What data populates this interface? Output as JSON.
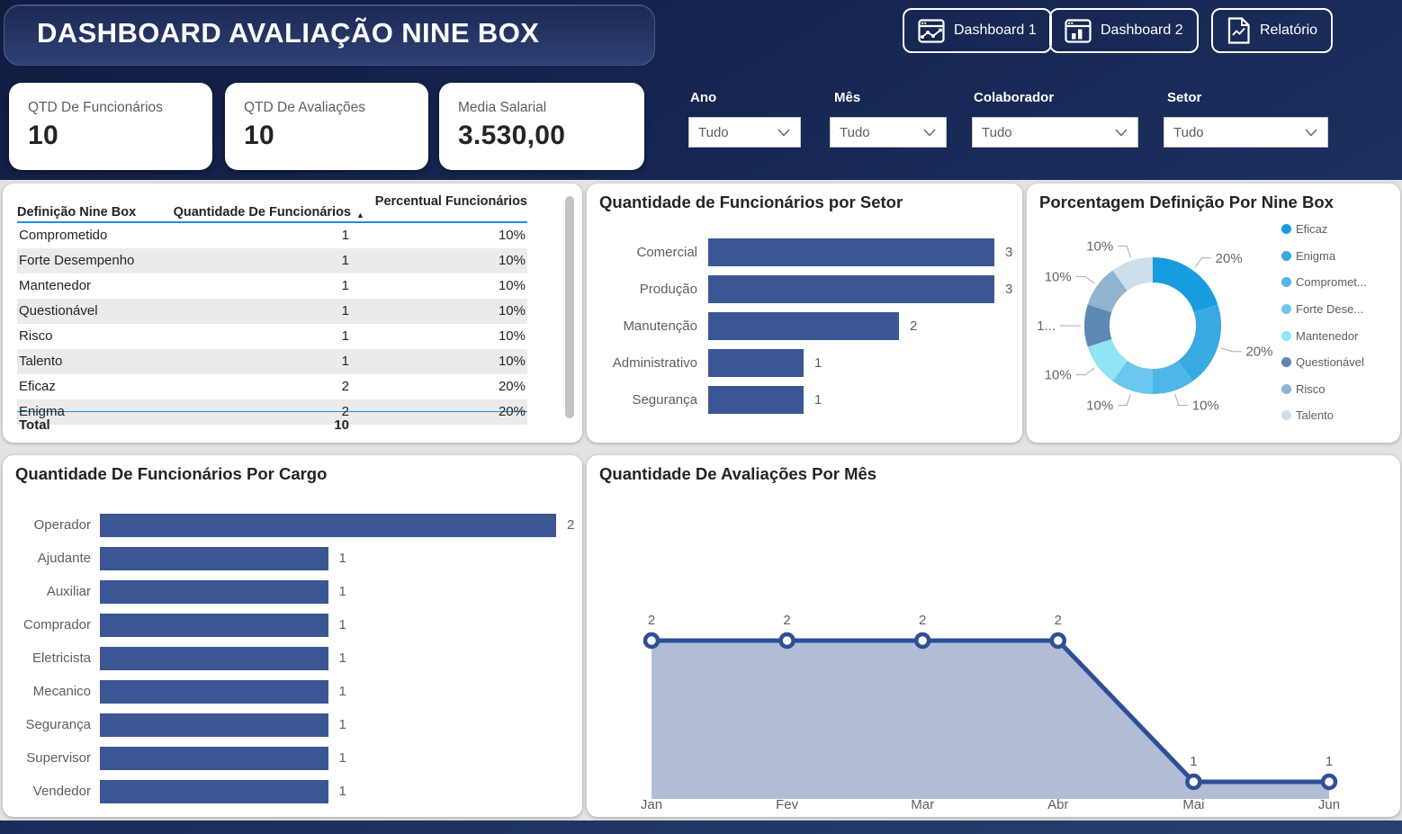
{
  "header": {
    "title": "DASHBOARD AVALIAÇÃO NINE BOX",
    "nav_buttons": [
      {
        "label": "Dashboard 1",
        "icon": "window-line-chart-icon"
      },
      {
        "label": "Dashboard 2",
        "icon": "window-bar-chart-icon"
      },
      {
        "label": "Relatório",
        "icon": "report-document-icon"
      }
    ]
  },
  "kpi_cards": [
    {
      "label": "QTD De Funcionários",
      "value": "10"
    },
    {
      "label": "QTD De Avaliações",
      "value": "10"
    },
    {
      "label": "Media Salarial",
      "value": "3.530,00"
    }
  ],
  "filters": [
    {
      "label": "Ano",
      "value": "Tudo"
    },
    {
      "label": "Mês",
      "value": "Tudo"
    },
    {
      "label": "Colaborador",
      "value": "Tudo"
    },
    {
      "label": "Setor",
      "value": "Tudo"
    }
  ],
  "nine_box_table": {
    "columns": [
      "Definição Nine Box",
      "Quantidade De Funcionários",
      "Percentual Funcionários"
    ],
    "sort_indicator": "▲",
    "rows": [
      [
        "Comprometido",
        "1",
        "10%"
      ],
      [
        "Forte Desempenho",
        "1",
        "10%"
      ],
      [
        "Mantenedor",
        "1",
        "10%"
      ],
      [
        "Questionável",
        "1",
        "10%"
      ],
      [
        "Risco",
        "1",
        "10%"
      ],
      [
        "Talento",
        "1",
        "10%"
      ],
      [
        "Eficaz",
        "2",
        "20%"
      ],
      [
        "Enigma",
        "2",
        "20%"
      ]
    ],
    "total_label": "Total",
    "total_value": "10",
    "accent_color": "#1F8CE3"
  },
  "chart_data": [
    {
      "id": "setor",
      "type": "bar",
      "orientation": "horizontal",
      "title": "Quantidade de Funcionários por Setor",
      "categories": [
        "Comercial",
        "Produção",
        "Manutenção",
        "Administrativo",
        "Segurança"
      ],
      "values": [
        3,
        3,
        2,
        1,
        1
      ],
      "xlim": [
        0,
        3
      ],
      "bar_color": "#3A5794",
      "label_color": "#605E5C"
    },
    {
      "id": "ninebox",
      "type": "pie",
      "donut": true,
      "title": "Porcentagem Definição Por Nine Box",
      "labels": [
        "Eficaz",
        "Enigma",
        "Comprometido",
        "Forte Desempenho",
        "Mantenedor",
        "Questionável",
        "Risco",
        "Talento"
      ],
      "legend_labels": [
        "Eficaz",
        "Enigma",
        "Compromet...",
        "Forte Dese...",
        "Mantenedor",
        "Questionável",
        "Risco",
        "Talento"
      ],
      "values": [
        20,
        20,
        10,
        10,
        10,
        10,
        10,
        10
      ],
      "data_labels": [
        "20%",
        "20%",
        "10%",
        "10%",
        "10%",
        "1...",
        "10%",
        "10%"
      ],
      "colors": [
        "#189CE0",
        "#38A9E2",
        "#4FB6E8",
        "#6BC7EE",
        "#90E4F4",
        "#5E87B4",
        "#90B3D1",
        "#CEDEEC"
      ],
      "legend_position": "right"
    },
    {
      "id": "cargo",
      "type": "bar",
      "orientation": "horizontal",
      "title": "Quantidade De Funcionários Por Cargo",
      "categories": [
        "Operador",
        "Ajudante",
        "Auxiliar",
        "Comprador",
        "Eletricista",
        "Mecanico",
        "Segurança",
        "Supervisor",
        "Vendedor"
      ],
      "values": [
        2,
        1,
        1,
        1,
        1,
        1,
        1,
        1,
        1
      ],
      "xlim": [
        0,
        2
      ],
      "bar_color": "#3A5794",
      "label_color": "#605E5C"
    },
    {
      "id": "avaliacoes",
      "type": "area",
      "title": "Quantidade De Avaliações Por Mês",
      "x": [
        "Jan",
        "Fev",
        "Mar",
        "Abr",
        "Mai",
        "Jun"
      ],
      "values": [
        2,
        2,
        2,
        2,
        1,
        1
      ],
      "ylim": [
        0,
        2
      ],
      "line_color": "#2E4F96",
      "fill_color": "#B2BCD5",
      "marker": "circle-white"
    }
  ]
}
